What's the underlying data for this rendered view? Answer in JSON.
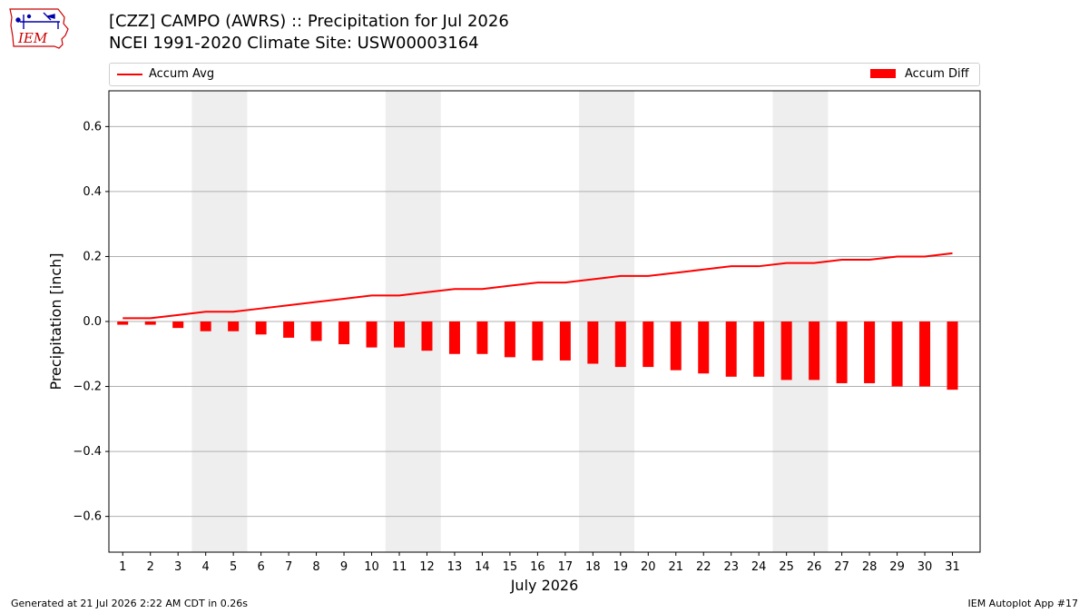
{
  "header": {
    "title_line1": "[CZZ] CAMPO (AWRS) :: Precipitation for Jul 2026",
    "title_line2": "NCEI 1991-2020 Climate Site: USW00003164",
    "logo_text": "IEM"
  },
  "legend": {
    "placement": "top",
    "line_label": "Accum Avg",
    "bar_label": "Accum Diff"
  },
  "colors": {
    "series": "#ff0000",
    "weekend_shade": "#eeeeee",
    "grid": "#b0b0b0",
    "logo": "#cc0000",
    "logo_blue": "#0000aa"
  },
  "chart_data": {
    "type": "bar",
    "title": "[CZZ] CAMPO (AWRS) :: Precipitation for Jul 2026",
    "xlabel": "July 2026",
    "ylabel": "Precipitation [inch]",
    "categories": [
      "1",
      "2",
      "3",
      "4",
      "5",
      "6",
      "7",
      "8",
      "9",
      "10",
      "11",
      "12",
      "13",
      "14",
      "15",
      "16",
      "17",
      "18",
      "19",
      "20",
      "21",
      "22",
      "23",
      "24",
      "25",
      "26",
      "27",
      "28",
      "29",
      "30",
      "31"
    ],
    "ylim": [
      -0.71,
      0.71
    ],
    "yticks": [
      -0.6,
      -0.4,
      -0.2,
      0.0,
      0.2,
      0.4,
      0.6
    ],
    "ytick_labels": [
      "−0.6",
      "−0.4",
      "−0.2",
      "0.0",
      "0.2",
      "0.4",
      "0.6"
    ],
    "grid": "y",
    "shaded_day_ranges": [
      [
        4,
        5
      ],
      [
        11,
        12
      ],
      [
        18,
        19
      ],
      [
        25,
        26
      ]
    ],
    "series": [
      {
        "name": "Accum Avg",
        "type": "line",
        "values": [
          0.01,
          0.01,
          0.02,
          0.03,
          0.03,
          0.04,
          0.05,
          0.06,
          0.07,
          0.08,
          0.08,
          0.09,
          0.1,
          0.1,
          0.11,
          0.12,
          0.12,
          0.13,
          0.14,
          0.14,
          0.15,
          0.16,
          0.17,
          0.17,
          0.18,
          0.18,
          0.19,
          0.19,
          0.2,
          0.2,
          0.21
        ]
      },
      {
        "name": "Accum Diff",
        "type": "bar",
        "values": [
          -0.01,
          -0.01,
          -0.02,
          -0.03,
          -0.03,
          -0.04,
          -0.05,
          -0.06,
          -0.07,
          -0.08,
          -0.08,
          -0.09,
          -0.1,
          -0.1,
          -0.11,
          -0.12,
          -0.12,
          -0.13,
          -0.14,
          -0.14,
          -0.15,
          -0.16,
          -0.17,
          -0.17,
          -0.18,
          -0.18,
          -0.19,
          -0.19,
          -0.2,
          -0.2,
          -0.21
        ]
      }
    ]
  },
  "footer": {
    "generated": "Generated at 21 Jul 2026 2:22 AM CDT in 0.26s",
    "app": "IEM Autoplot App #17"
  }
}
